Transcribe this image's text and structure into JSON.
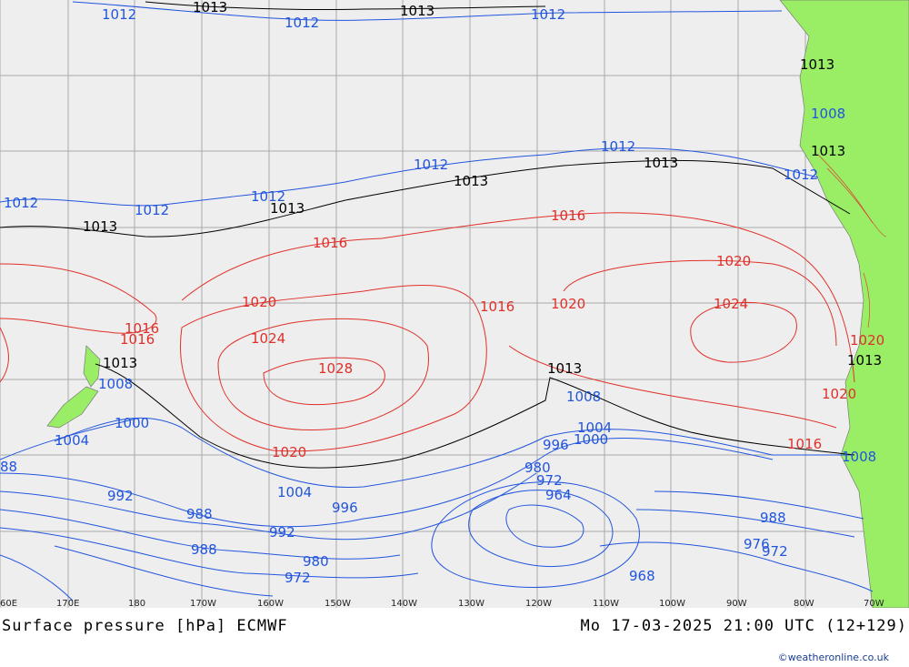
{
  "title_left": "Surface pressure [hPa] ECMWF",
  "title_right": "Mo 17-03-2025 21:00 UTC (12+129)",
  "credit": "©weatheronline.co.uk",
  "colors": {
    "high": "#e0302a",
    "low": "#2255dd",
    "ref": "#000000",
    "land": "#99ee66",
    "ocean": "#eeeeee",
    "grid": "#aaaaaa"
  },
  "lon_ticks": [
    "60E",
    "170E",
    "180",
    "170W",
    "160W",
    "150W",
    "140W",
    "130W",
    "120W",
    "110W",
    "100W",
    "90W",
    "80W",
    "70W"
  ],
  "labels": {
    "l1012_a": "1012",
    "l1013_a": "1013",
    "l1012_b": "1012",
    "l1013_b": "1013",
    "l1012_c": "1012",
    "l1012_d": "1012",
    "l1013_c": "1013",
    "l1012_e": "1012",
    "l1013_d": "1013",
    "l1012_f": "1012",
    "l1012_g": "1012",
    "l1013_e": "1013",
    "l1013_f": "1013",
    "l1012_h": "1012",
    "l1013_g": "1013",
    "l1016_a": "1016",
    "l1016_b": "1016",
    "l1016_c": "1016",
    "l1016_d": "1016",
    "l1016_e": "1016",
    "l1020_a": "1020",
    "l1020_b": "1020",
    "l1020_c": "1020",
    "l1020_d": "1020",
    "l1020_e": "1020",
    "l1024_a": "1024",
    "l1024_b": "1024",
    "l1028": "1028",
    "l1013_h": "1013",
    "l1013_i": "1013",
    "l1008_a": "1008",
    "l1008_b": "1008",
    "l1008_c": "1008",
    "l1004_a": "1004",
    "l1004_b": "1004",
    "l1004_c": "1004",
    "l1000_a": "1000",
    "l1000_b": "1000",
    "l996_a": "996",
    "l996_b": "996",
    "l992_a": "992",
    "l992_b": "992",
    "l988_a": "988",
    "l988_b": "988",
    "l988_c": "988",
    "l988_d": "88",
    "l980_a": "980",
    "l980_b": "980",
    "l972_a": "972",
    "l972_b": "972",
    "l972_c": "972",
    "l964": "964",
    "l968": "968",
    "l976": "976",
    "l1012_i": "1012",
    "l1008_d": "1008",
    "l1013_j": "1013",
    "l1020_f": "1020",
    "l1013_k": "1013"
  }
}
